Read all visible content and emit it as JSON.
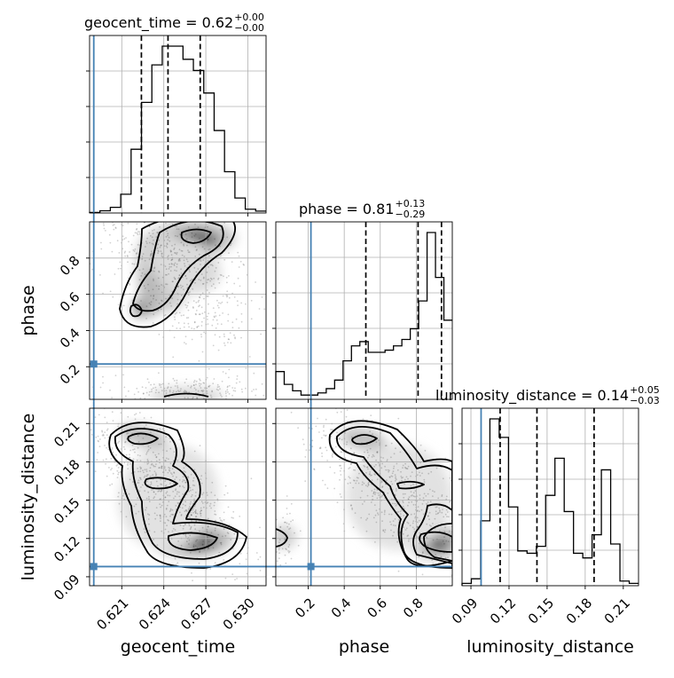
{
  "chart_data": {
    "type": "corner",
    "parameters": [
      {
        "name": "geocent_time",
        "title_prefix": "geocent_time = ",
        "median": "0.62",
        "upper": "+0.00",
        "lower": "−0.00",
        "range": [
          0.6187,
          0.6313
        ],
        "ticks": [
          "0.621",
          "0.624",
          "0.627",
          "0.630"
        ],
        "tick_values": [
          0.621,
          0.624,
          0.627,
          0.63
        ],
        "truth": 0.619,
        "quantiles": [
          0.6224,
          0.6243,
          0.6266
        ],
        "histogram": [
          0.3,
          1.2,
          3,
          10,
          34,
          59,
          79,
          89,
          89,
          82,
          76,
          64,
          44,
          22,
          8,
          2,
          1
        ]
      },
      {
        "name": "phase",
        "title_prefix": "phase = ",
        "median": "0.81",
        "upper": "+0.13",
        "lower": "−0.29",
        "range": [
          0.02,
          1.0
        ],
        "ticks": [
          "0.2",
          "0.4",
          "0.6",
          "0.8"
        ],
        "tick_values": [
          0.2,
          0.4,
          0.6,
          0.8
        ],
        "truth": 0.215,
        "quantiles": [
          0.52,
          0.81,
          0.94
        ],
        "histogram": [
          13,
          7,
          4,
          2,
          2,
          3,
          5,
          9,
          18,
          25,
          27,
          22,
          22,
          23,
          25,
          28,
          33,
          46,
          78,
          57,
          37
        ]
      },
      {
        "name": "luminosity_distance",
        "title_prefix": "luminosity_distance = ",
        "median": "0.14",
        "upper": "+0.05",
        "lower": "−0.03",
        "range": [
          0.083,
          0.222
        ],
        "ticks": [
          "0.09",
          "0.12",
          "0.15",
          "0.18",
          "0.21"
        ],
        "tick_values": [
          0.09,
          0.12,
          0.15,
          0.18,
          0.21
        ],
        "truth": 0.098,
        "quantiles": [
          0.113,
          0.142,
          0.187
        ],
        "histogram": [
          1,
          3,
          28,
          72,
          64,
          34,
          15,
          14,
          17,
          39,
          55,
          32,
          14,
          12,
          22,
          50,
          18,
          2,
          1
        ]
      }
    ],
    "truth_color": "#4682b4",
    "contour_levels": [
      "0.39",
      "0.86",
      "0.99"
    ]
  }
}
